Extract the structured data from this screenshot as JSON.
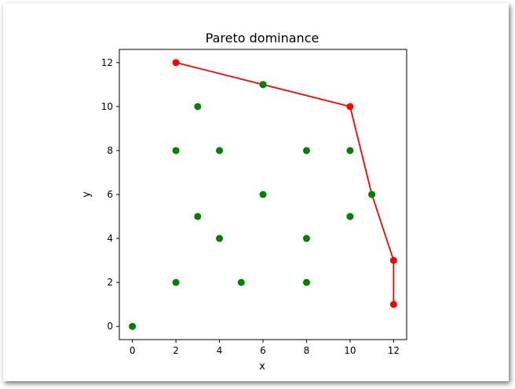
{
  "chart_data": {
    "type": "scatter",
    "title": "Pareto dominance",
    "xlabel": "x",
    "ylabel": "y",
    "xlim": [
      -0.6,
      12.6
    ],
    "ylim": [
      -0.6,
      12.6
    ],
    "xticks": [
      0,
      2,
      4,
      6,
      8,
      10,
      12
    ],
    "yticks": [
      0,
      2,
      4,
      6,
      8,
      10,
      12
    ],
    "grid": false,
    "colors": {
      "points": "#008000",
      "front": "#ff0000"
    },
    "series": [
      {
        "points": [
          [
            0,
            0
          ],
          [
            2,
            2
          ],
          [
            2,
            8
          ],
          [
            3,
            5
          ],
          [
            3,
            10
          ],
          [
            4,
            4
          ],
          [
            4,
            8
          ],
          [
            5,
            2
          ],
          [
            6,
            6
          ],
          [
            6,
            11
          ],
          [
            8,
            2
          ],
          [
            8,
            4
          ],
          [
            8,
            8
          ],
          [
            10,
            5
          ],
          [
            10,
            8
          ],
          [
            11,
            6
          ]
        ]
      },
      {
        "points": [
          [
            2,
            12
          ],
          [
            6,
            11
          ],
          [
            10,
            10
          ],
          [
            11,
            6
          ],
          [
            12,
            3
          ],
          [
            12,
            1
          ]
        ],
        "marked": [
          [
            2,
            12
          ],
          [
            10,
            10
          ],
          [
            12,
            3
          ],
          [
            12,
            1
          ]
        ]
      }
    ]
  }
}
